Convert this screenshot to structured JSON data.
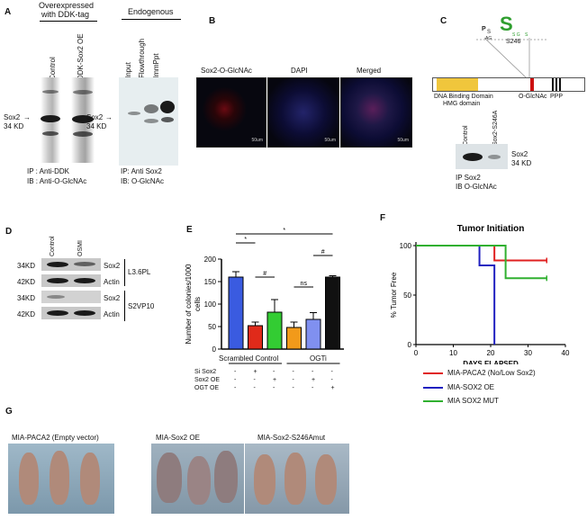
{
  "panels": {
    "A": {
      "letter": "A",
      "header_over": "Overexpressed",
      "header_with": "with DDK-tag",
      "header_endo": "Endogenous",
      "lanes_left": [
        "Control",
        "DDK-Sox2 OE"
      ],
      "lanes_right": [
        "Input",
        "Flowthrough",
        "ImmPpt"
      ],
      "band_sox2": "Sox2",
      "band_kd": "34 KD",
      "ip_left": "IP : Anti-DDK",
      "ib_left": "IB : Anti-O-GlcNAc",
      "ip_right": "IP: Anti Sox2",
      "ib_right": "IB: O-GlcNAc"
    },
    "B": {
      "letter": "B",
      "images": [
        "Sox2-O-GlcNAc",
        "DAPI",
        "Merged"
      ],
      "scale": "50um"
    },
    "C": {
      "letter": "C",
      "site": "S246",
      "dbd": "DNA Binding Domain",
      "hmg": "HMG domain",
      "oglc": "O-GlcNAc",
      "ppp": "PPP",
      "lanes": [
        "Control",
        "Sox2-S246A"
      ],
      "band_sox2": "Sox2",
      "band_kd": "34 KD",
      "ip": "IP Sox2",
      "ib": "IB O-GlcNAc"
    },
    "D": {
      "letter": "D",
      "lanes": [
        "Control",
        "OSMI"
      ],
      "rows": [
        {
          "kd": "34KD",
          "label": "Sox2"
        },
        {
          "kd": "42KD",
          "label": "Actin"
        },
        {
          "kd": "34KD",
          "label": "Sox2"
        },
        {
          "kd": "42KD",
          "label": "Actin"
        }
      ],
      "cell1": "L3.6PL",
      "cell2": "S2VP10"
    },
    "E": {
      "letter": "E",
      "group1": "Scrambled Control",
      "group2": "OGTi",
      "row_labels": [
        "Si Sox2",
        "Sox2 OE",
        "OGT OE"
      ],
      "row_values": [
        [
          "-",
          "+",
          "-",
          "-",
          "-",
          "-"
        ],
        [
          "-",
          "-",
          "+",
          "-",
          "+",
          "-"
        ],
        [
          "-",
          "-",
          "-",
          "-",
          "-",
          "+"
        ]
      ],
      "sig": [
        "*",
        "*",
        "#",
        "ns",
        "#"
      ]
    },
    "F": {
      "letter": "F",
      "legend": [
        "MIA-PACA2 (No/Low Sox2)",
        "MIA-SOX2 OE",
        "MIA SOX2 MUT"
      ]
    },
    "G": {
      "letter": "G",
      "photos": [
        "MIA-PACA2 (Empty vector)",
        "MIA-Sox2 OE",
        "MIA-Sox2-S246Amut"
      ]
    }
  },
  "chart_data": [
    {
      "type": "bar",
      "panel": "E",
      "ylabel": "Number of colonies/1000 cells",
      "ylim": [
        0,
        200
      ],
      "yticks": [
        0,
        50,
        100,
        150,
        200
      ],
      "values": [
        160,
        52,
        82,
        48,
        66,
        160
      ],
      "errors": [
        12,
        8,
        28,
        12,
        15,
        3
      ],
      "colors": [
        "#3a5be0",
        "#e02a1a",
        "#33cc33",
        "#f29a1a",
        "#8090f0",
        "#111111"
      ]
    },
    {
      "type": "line",
      "panel": "F",
      "title": "Tumor Initiation",
      "xlabel": "DAYS ELAPSED",
      "ylabel": "% Tumor Free",
      "xlim": [
        0,
        40
      ],
      "ylim": [
        0,
        100
      ],
      "xticks": [
        0,
        10,
        20,
        30,
        40
      ],
      "yticks": [
        0,
        50,
        100
      ],
      "series": [
        {
          "name": "MIA-PACA2 (No/Low Sox2)",
          "color": "#e02020",
          "steps": [
            [
              0,
              100
            ],
            [
              21,
              100
            ],
            [
              21,
              85
            ],
            [
              35,
              85
            ]
          ]
        },
        {
          "name": "MIA-SOX2 OE",
          "color": "#2020c0",
          "steps": [
            [
              0,
              100
            ],
            [
              17,
              100
            ],
            [
              17,
              80
            ],
            [
              21,
              80
            ],
            [
              21,
              0
            ]
          ]
        },
        {
          "name": "MIA SOX2 MUT",
          "color": "#30b030",
          "steps": [
            [
              0,
              100
            ],
            [
              24,
              100
            ],
            [
              24,
              67
            ],
            [
              35,
              67
            ]
          ]
        }
      ]
    }
  ]
}
